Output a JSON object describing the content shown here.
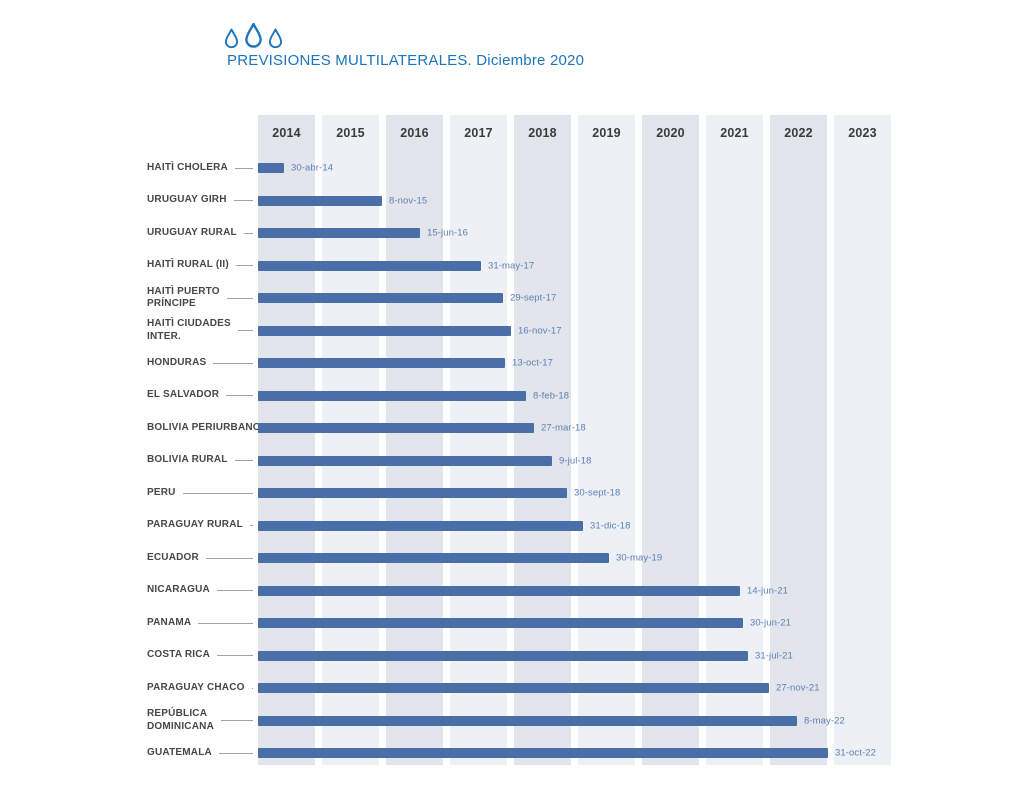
{
  "header": {
    "logo_icon": "three-water-drops",
    "title": "PREVISIONES MULTILATERALES. Diciembre 2020"
  },
  "colors": {
    "title_blue": "#1c75bc",
    "bar_blue": "#4a6ea8",
    "date_label_blue": "#5d80b6",
    "column_dark": "#e2e5ec",
    "column_light": "#edf0f4",
    "year_text": "#3b3b3b",
    "row_label_text": "#474747"
  },
  "chart_data": {
    "type": "bar",
    "subtype": "horizontal-gantt-timeline",
    "title": "PREVISIONES MULTILATERALES. Diciembre 2020",
    "legend": "none",
    "grid": "alternating-year-columns",
    "x_axis": {
      "unit": "year",
      "range": [
        2014,
        2024
      ],
      "tick_labels": [
        "2014",
        "2015",
        "2016",
        "2017",
        "2018",
        "2019",
        "2020",
        "2021",
        "2022",
        "2023"
      ]
    },
    "bar_color": "#4a6ea8",
    "bars_start_at": 2014,
    "rows": [
      {
        "label": "HAITÌ CHOLERA",
        "date": "30-abr-14",
        "end": 2014.33
      },
      {
        "label": "URUGUAY GIRH",
        "date": "8-nov-15",
        "end": 2015.86
      },
      {
        "label": "URUGUAY RURAL",
        "date": "15-jun-16",
        "end": 2016.46
      },
      {
        "label": "HAITÌ RURAL (II)",
        "date": "31-may-17",
        "end": 2017.41
      },
      {
        "label": "HAITÌ PUERTO\nPRÍNCIPE",
        "date": "29-sept-17",
        "end": 2017.75
      },
      {
        "label": "HAITÌ CIUDADES\nINTER.",
        "date": "16-nov-17",
        "end": 2017.88
      },
      {
        "label": "HONDURAS",
        "date": "13-oct-17",
        "end": 2017.78
      },
      {
        "label": "EL SALVADOR",
        "date": "8-feb-18",
        "end": 2018.11
      },
      {
        "label": "BOLIVIA PERIURBANO",
        "date": "27-mar-18",
        "end": 2018.24
      },
      {
        "label": "BOLIVIA RURAL",
        "date": "9-jul-18",
        "end": 2018.52
      },
      {
        "label": "PERU",
        "date": "30-sept-18",
        "end": 2018.75
      },
      {
        "label": "PARAGUAY RURAL",
        "date": "31-dic-18",
        "end": 2019.0
      },
      {
        "label": "ECUADOR",
        "date": "30-may-19",
        "end": 2019.41
      },
      {
        "label": "NICARAGUA",
        "date": "14-jun-21",
        "end": 2021.45
      },
      {
        "label": "PANAMA",
        "date": "30-jun-21",
        "end": 2021.5
      },
      {
        "label": "COSTA RICA",
        "date": "31-jul-21",
        "end": 2021.58
      },
      {
        "label": "PARAGUAY CHACO",
        "date": "27-nov-21",
        "end": 2021.91
      },
      {
        "label": "REPÚBLICA\nDOMINICANA",
        "date": "8-may-22",
        "end": 2022.35
      },
      {
        "label": "GUATEMALA",
        "date": "31-oct-22",
        "end": 2022.83
      }
    ]
  }
}
